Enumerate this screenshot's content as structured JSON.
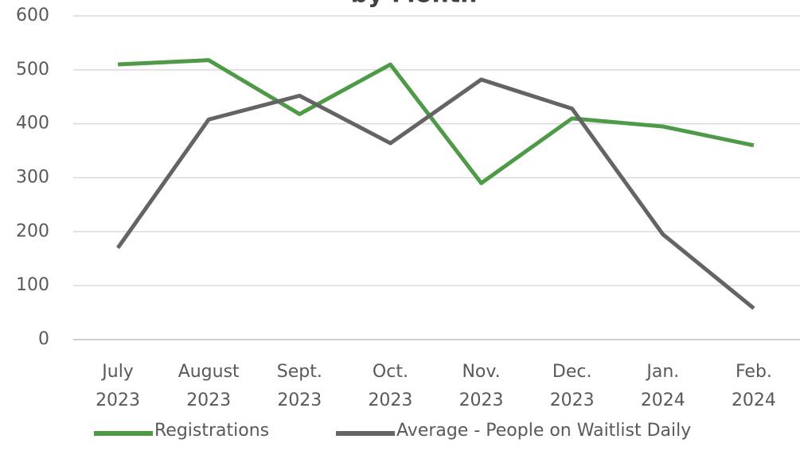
{
  "chart_data": {
    "type": "line",
    "title": "by Month",
    "categories": [
      [
        "July",
        "2023"
      ],
      [
        "August",
        "2023"
      ],
      [
        "Sept.",
        "2023"
      ],
      [
        "Oct.",
        "2023"
      ],
      [
        "Nov.",
        "2023"
      ],
      [
        "Dec.",
        "2023"
      ],
      [
        "Jan.",
        "2024"
      ],
      [
        "Feb.",
        "2024"
      ]
    ],
    "series": [
      {
        "name": "Registrations",
        "color": "#4e9a47",
        "values": [
          510,
          518,
          418,
          510,
          290,
          410,
          395,
          360
        ]
      },
      {
        "name": "Average - People on Waitlist Daily",
        "color": "#646464",
        "values": [
          170,
          408,
          452,
          364,
          482,
          428,
          195,
          58
        ]
      }
    ],
    "ylim": [
      0,
      600
    ],
    "yticks": [
      0,
      100,
      200,
      300,
      400,
      500,
      600
    ],
    "grid": true,
    "legend": "bottom"
  }
}
